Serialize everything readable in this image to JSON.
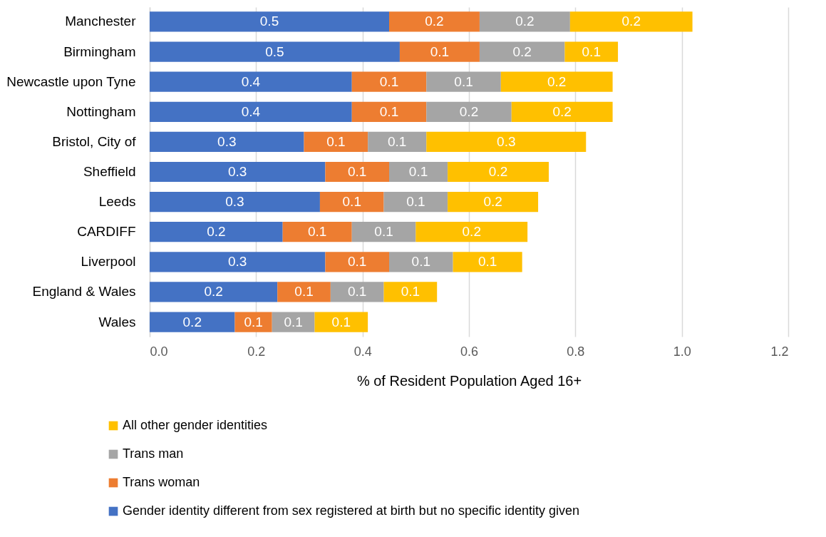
{
  "chart_data": {
    "type": "bar",
    "orientation": "horizontal",
    "stacked": true,
    "xlabel": "% of Resident Population Aged 16+",
    "categories": [
      "Manchester",
      "Birmingham",
      "Newcastle upon Tyne",
      "Nottingham",
      "Bristol, City of",
      "Sheffield",
      "Leeds",
      "CARDIFF",
      "Liverpool",
      "England & Wales",
      "Wales"
    ],
    "series": [
      {
        "name": "Gender identity different from sex registered at birth but no specific identity given",
        "color": "#4472c4",
        "values": [
          0.45,
          0.47,
          0.38,
          0.38,
          0.29,
          0.33,
          0.32,
          0.25,
          0.33,
          0.24,
          0.16
        ],
        "value_labels": [
          "0.5",
          "0.5",
          "0.4",
          "0.4",
          "0.3",
          "0.3",
          "0.3",
          "0.2",
          "0.3",
          "0.2",
          "0.2"
        ]
      },
      {
        "name": "Trans woman",
        "color": "#ed7d31",
        "values": [
          0.17,
          0.15,
          0.14,
          0.14,
          0.12,
          0.12,
          0.12,
          0.13,
          0.12,
          0.1,
          0.07
        ],
        "value_labels": [
          "0.2",
          "0.1",
          "0.1",
          "0.1",
          "0.1",
          "0.1",
          "0.1",
          "0.1",
          "0.1",
          "0.1",
          "0.1"
        ]
      },
      {
        "name": "Trans man",
        "color": "#a5a5a5",
        "values": [
          0.17,
          0.16,
          0.14,
          0.16,
          0.11,
          0.11,
          0.12,
          0.12,
          0.12,
          0.1,
          0.08
        ],
        "value_labels": [
          "0.2",
          "0.2",
          "0.1",
          "0.2",
          "0.1",
          "0.1",
          "0.1",
          "0.1",
          "0.1",
          "0.1",
          "0.1"
        ]
      },
      {
        "name": "All other gender identities",
        "color": "#ffc000",
        "values": [
          0.23,
          0.1,
          0.21,
          0.19,
          0.3,
          0.19,
          0.17,
          0.21,
          0.13,
          0.1,
          0.1
        ],
        "value_labels": [
          "0.2",
          "0.1",
          "0.2",
          "0.2",
          "0.3",
          "0.2",
          "0.2",
          "0.2",
          "0.1",
          "0.1",
          "0.1"
        ]
      }
    ],
    "xlim": [
      0,
      1.2
    ],
    "xticks": [
      {
        "value": 0,
        "label": "0.0"
      },
      0.2,
      0.4,
      0.6,
      0.8,
      {
        "value": 1,
        "label": "1.0"
      },
      1.2
    ],
    "grid": "x",
    "legend": "bottom"
  }
}
